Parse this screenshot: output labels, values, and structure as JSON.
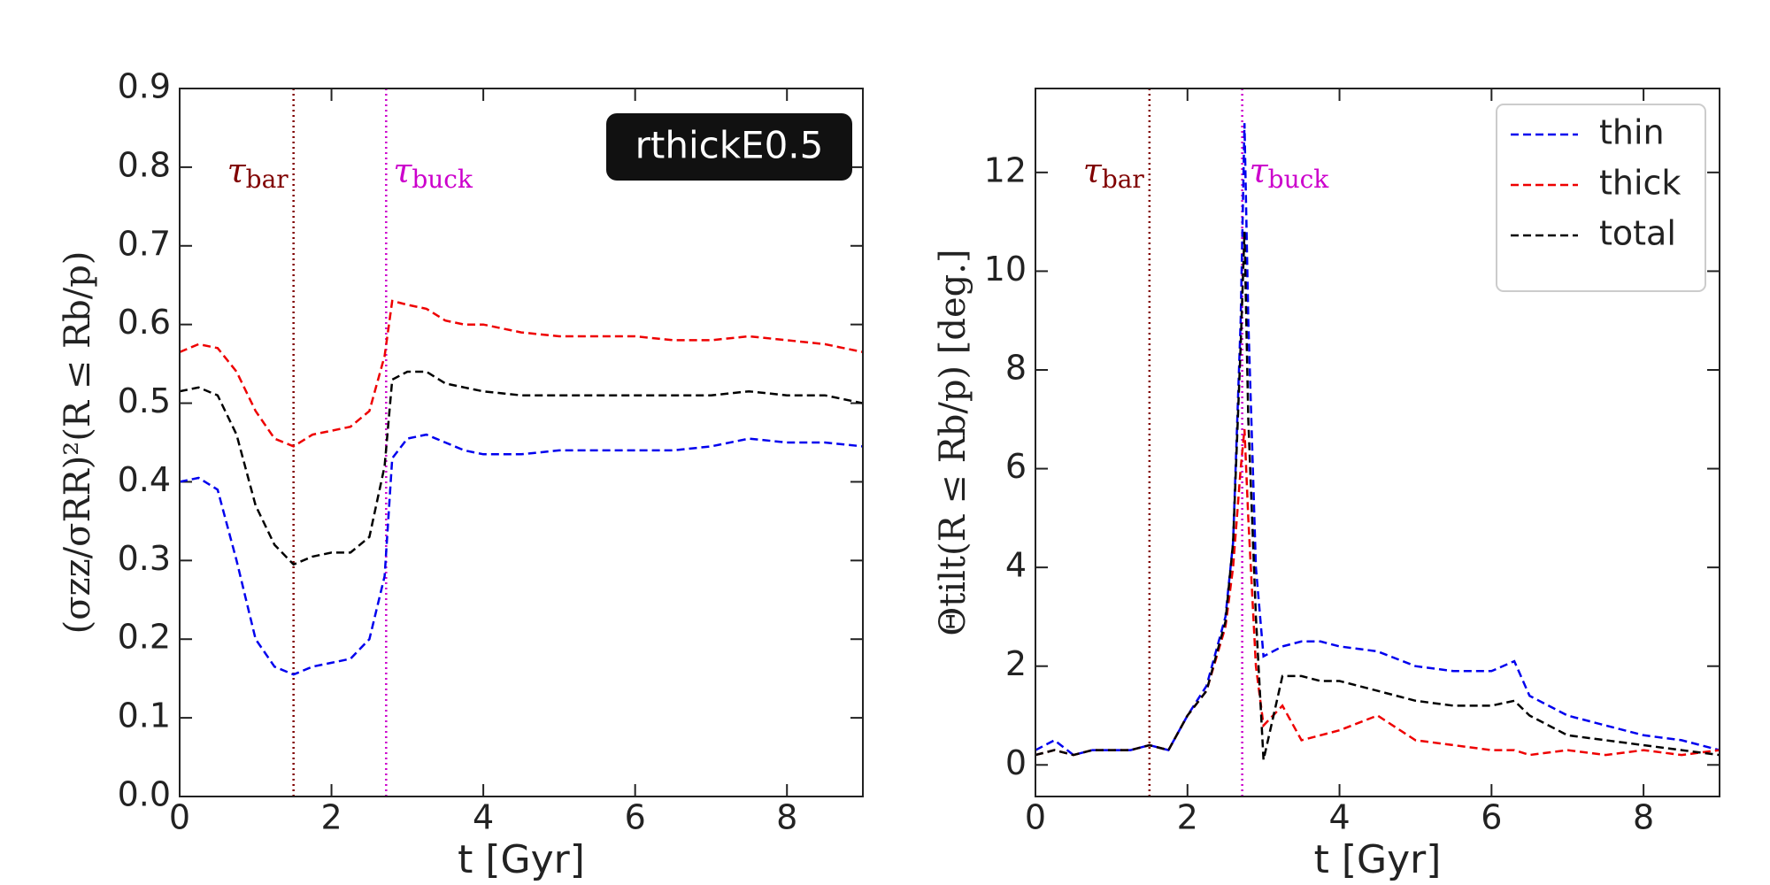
{
  "chart_data": [
    {
      "type": "line",
      "label_box": "rthickE0.5",
      "xlabel": "t [Gyr]",
      "ylabel": "(σzz/σRR)²(R ≤ Rb/p)",
      "xlim": [
        0,
        9
      ],
      "ylim": [
        0,
        0.9
      ],
      "xticks": [
        0,
        2,
        4,
        6,
        8
      ],
      "yticks": [
        {
          "value": 0,
          "label": "0.0"
        },
        0.1,
        0.2,
        0.3,
        0.4,
        0.5,
        0.6,
        0.7,
        0.8,
        0.9
      ],
      "annotations": [
        {
          "text": "τ",
          "sub": "bar",
          "x": 1.5,
          "color": "#800000"
        },
        {
          "text": "τ",
          "sub": "buck",
          "x": 2.72,
          "color": "#cc00cc"
        }
      ],
      "x": [
        0,
        0.25,
        0.5,
        0.75,
        1,
        1.25,
        1.5,
        1.75,
        2,
        2.25,
        2.5,
        2.7,
        2.8,
        3,
        3.25,
        3.5,
        3.75,
        4,
        4.5,
        5,
        5.5,
        6,
        6.5,
        7,
        7.5,
        8,
        8.5,
        9
      ],
      "series": [
        {
          "color": "#0000ee",
          "values": [
            0.4,
            0.405,
            0.39,
            0.3,
            0.2,
            0.165,
            0.155,
            0.165,
            0.17,
            0.175,
            0.2,
            0.28,
            0.43,
            0.455,
            0.46,
            0.45,
            0.44,
            0.435,
            0.435,
            0.44,
            0.44,
            0.44,
            0.44,
            0.445,
            0.455,
            0.45,
            0.45,
            0.445
          ]
        },
        {
          "color": "#ee0000",
          "values": [
            0.565,
            0.575,
            0.57,
            0.54,
            0.49,
            0.455,
            0.445,
            0.46,
            0.465,
            0.47,
            0.49,
            0.56,
            0.63,
            0.625,
            0.62,
            0.605,
            0.6,
            0.6,
            0.59,
            0.585,
            0.585,
            0.585,
            0.58,
            0.58,
            0.585,
            0.58,
            0.575,
            0.565
          ]
        },
        {
          "color": "#000000",
          "values": [
            0.515,
            0.52,
            0.51,
            0.46,
            0.37,
            0.32,
            0.295,
            0.305,
            0.31,
            0.31,
            0.33,
            0.42,
            0.53,
            0.54,
            0.54,
            0.525,
            0.52,
            0.515,
            0.51,
            0.51,
            0.51,
            0.51,
            0.51,
            0.51,
            0.515,
            0.51,
            0.51,
            0.5
          ]
        }
      ]
    },
    {
      "type": "line",
      "xlabel": "t [Gyr]",
      "ylabel": "Θtilt(R ≤ Rb/p) [deg.]",
      "xlim": [
        0,
        9
      ],
      "ylim": [
        -0.64,
        13.7
      ],
      "xticks": [
        0,
        2,
        4,
        6,
        8
      ],
      "yticks": [
        0,
        2,
        4,
        6,
        8,
        10,
        12
      ],
      "legend": "upper right",
      "annotations": [
        {
          "text": "τ",
          "sub": "bar",
          "x": 1.5,
          "color": "#800000"
        },
        {
          "text": "τ",
          "sub": "buck",
          "x": 2.72,
          "color": "#cc00cc"
        }
      ],
      "x": [
        0,
        0.25,
        0.5,
        0.75,
        1,
        1.25,
        1.5,
        1.75,
        2,
        2.25,
        2.5,
        2.6,
        2.7,
        2.75,
        2.8,
        2.9,
        3,
        3.25,
        3.5,
        3.75,
        4,
        4.5,
        5,
        5.5,
        6,
        6.3,
        6.5,
        7,
        7.5,
        8,
        8.5,
        9
      ],
      "series": [
        {
          "name": "thin",
          "color": "#0000ee",
          "values": [
            0.3,
            0.5,
            0.2,
            0.3,
            0.3,
            0.3,
            0.4,
            0.3,
            1.0,
            1.6,
            3.0,
            4.5,
            9,
            13,
            9,
            4,
            2.2,
            2.4,
            2.5,
            2.5,
            2.4,
            2.3,
            2.0,
            1.9,
            1.9,
            2.1,
            1.4,
            1.0,
            0.8,
            0.6,
            0.5,
            0.3
          ]
        },
        {
          "name": "thick",
          "color": "#ee0000",
          "values": [
            0.2,
            0.3,
            0.2,
            0.3,
            0.3,
            0.3,
            0.4,
            0.3,
            1.0,
            1.5,
            2.8,
            4,
            6,
            6.8,
            5,
            2,
            0.8,
            1.2,
            0.5,
            0.6,
            0.7,
            1.0,
            0.5,
            0.4,
            0.3,
            0.3,
            0.2,
            0.3,
            0.2,
            0.3,
            0.2,
            0.3
          ]
        },
        {
          "name": "total",
          "color": "#000000",
          "values": [
            0.2,
            0.3,
            0.2,
            0.3,
            0.3,
            0.3,
            0.4,
            0.3,
            1.0,
            1.5,
            2.9,
            4.5,
            8.5,
            10.8,
            7,
            3,
            0.1,
            1.8,
            1.8,
            1.7,
            1.7,
            1.5,
            1.3,
            1.2,
            1.2,
            1.3,
            1.0,
            0.6,
            0.5,
            0.4,
            0.3,
            0.2
          ]
        }
      ]
    }
  ]
}
